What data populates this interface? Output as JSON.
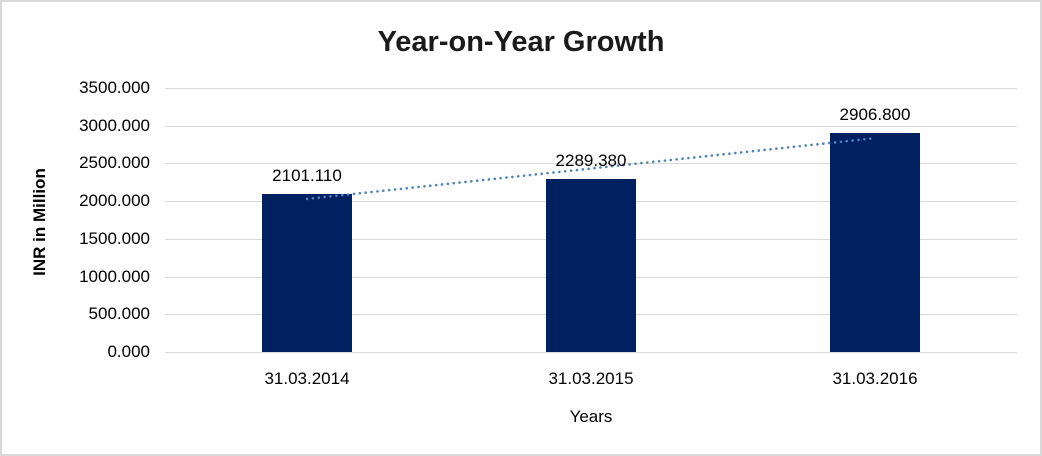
{
  "chart_data": {
    "type": "bar",
    "title": "Year-on-Year Growth",
    "xlabel": "Years",
    "ylabel": "INR in Million",
    "categories": [
      "31.03.2014",
      "31.03.2015",
      "31.03.2016"
    ],
    "values": [
      2101.11,
      2289.38,
      2906.8
    ],
    "data_labels": [
      "2101.110",
      "2289.380",
      "2906.800"
    ],
    "y_ticks": [
      0,
      500,
      1000,
      1500,
      2000,
      2500,
      3000,
      3500
    ],
    "y_tick_labels": [
      "0.000",
      "500.000",
      "1000.000",
      "1500.000",
      "2000.000",
      "2500.000",
      "3000.000",
      "3500.000"
    ],
    "ylim": [
      0,
      3500
    ],
    "grid": "horizontal-on",
    "legend": "none",
    "trendline": {
      "type": "linear",
      "style": "dotted",
      "color": "#4f81bd"
    },
    "colors": {
      "bar": "#002060",
      "gridline": "#d9d9d9",
      "border": "#d9d9d9",
      "background": "#ffffff",
      "text": "#000000",
      "title_text": "#1a1a1a"
    }
  }
}
